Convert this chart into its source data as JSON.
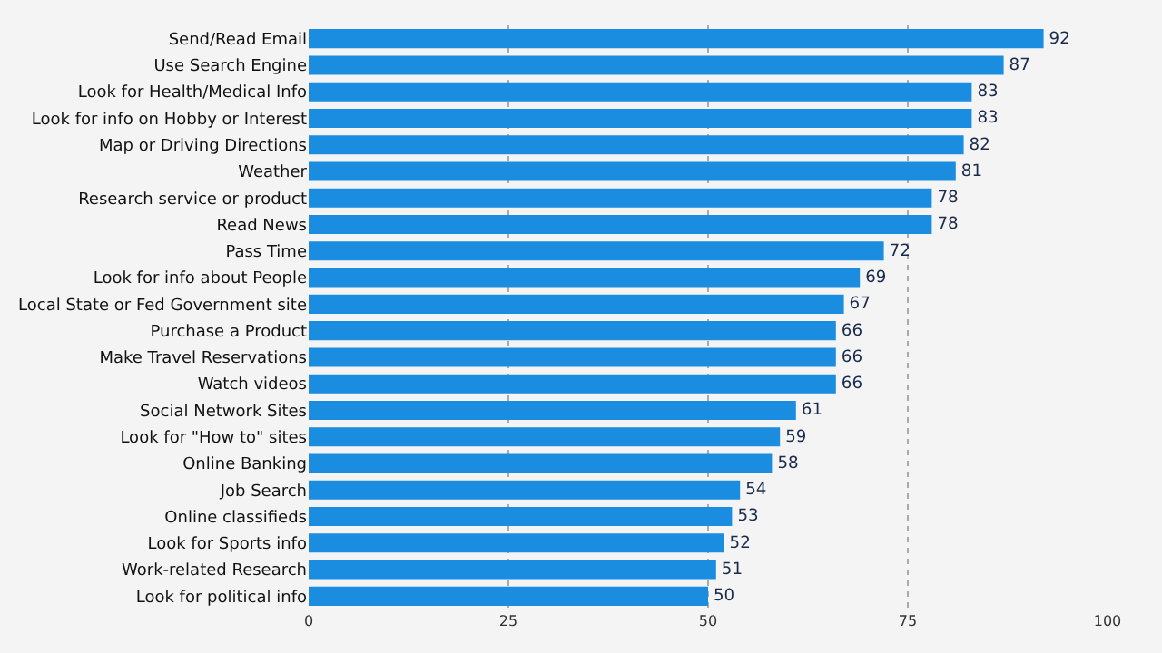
{
  "chart_data": {
    "type": "bar",
    "orientation": "horizontal",
    "categories": [
      "Send/Read Email",
      "Use Search Engine",
      "Look for Health/Medical Info",
      "Look for info on Hobby or Interest",
      "Map or Driving Directions",
      "Weather",
      "Research service or product",
      "Read News",
      "Pass Time",
      "Look for info about People",
      "Local State or Fed Government site",
      "Purchase a Product",
      "Make Travel Reservations",
      "Watch videos",
      "Social Network Sites",
      "Look for \"How to\" sites",
      "Online Banking",
      "Job Search",
      "Online classifieds",
      "Look for Sports info",
      "Work-related Research",
      "Look for political info"
    ],
    "values": [
      92,
      87,
      83,
      83,
      82,
      81,
      78,
      78,
      72,
      69,
      67,
      66,
      66,
      66,
      61,
      59,
      58,
      54,
      53,
      52,
      51,
      50
    ],
    "color": "#1a8de0",
    "xlim": [
      0,
      100
    ],
    "xticks": [
      0,
      25,
      50,
      75,
      100
    ],
    "grid": "x",
    "data_labels": true
  }
}
